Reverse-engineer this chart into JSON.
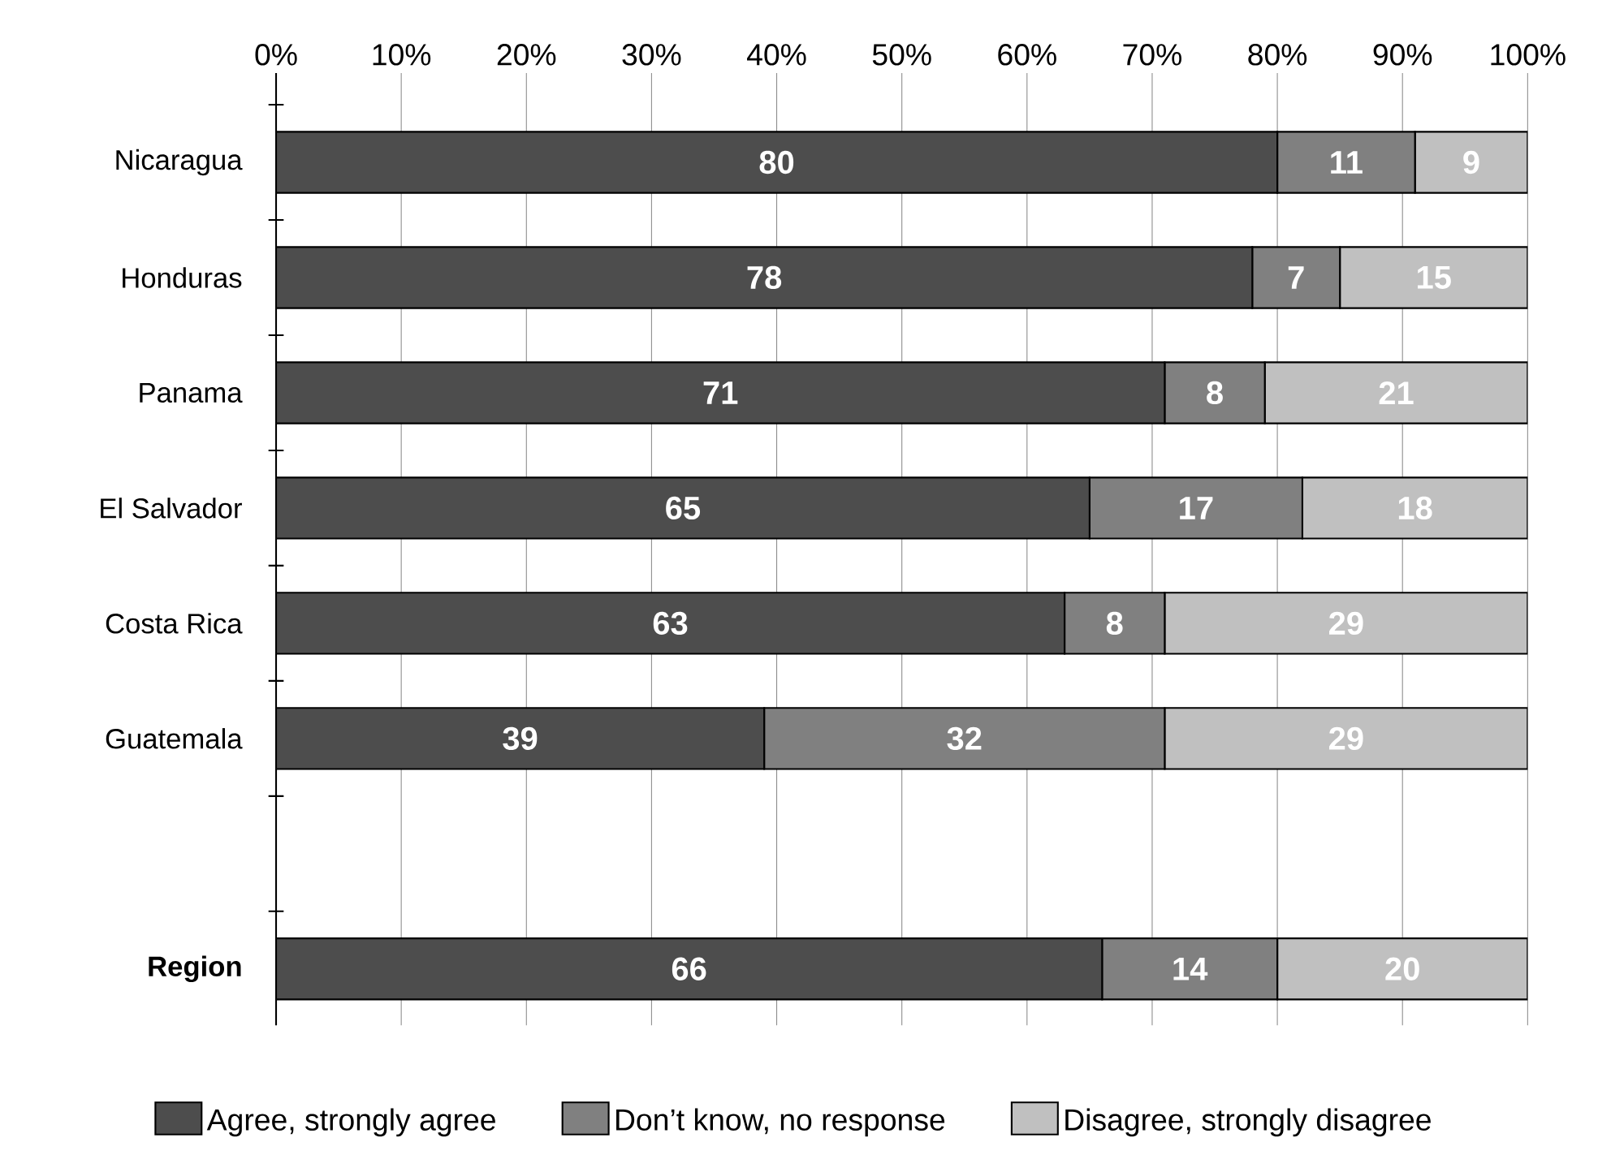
{
  "chart_data": {
    "type": "bar",
    "orientation": "horizontal",
    "stacked": true,
    "categories": [
      "Nicaragua",
      "Honduras",
      "Panama",
      "El Salvador",
      "Costa Rica",
      "Guatemala",
      null,
      "**Region**"
    ],
    "series": [
      {
        "name": "Agree, strongly agree",
        "color": "#4d4d4d",
        "values": [
          80,
          78,
          71,
          65,
          63,
          39,
          null,
          66
        ]
      },
      {
        "name": "Don’t know, no response",
        "color": "#808080",
        "values": [
          11,
          7,
          8,
          17,
          8,
          32,
          null,
          14
        ]
      },
      {
        "name": "Disagree, strongly disagree",
        "color": "#c0c0c0",
        "values": [
          9,
          15,
          21,
          18,
          29,
          29,
          null,
          20
        ]
      }
    ],
    "xlim": [
      0,
      100
    ],
    "xticks": [
      {
        "value": 0,
        "label": "0%"
      },
      {
        "value": 10,
        "label": "10%"
      },
      {
        "value": 20,
        "label": "20%"
      },
      {
        "value": 30,
        "label": "30%"
      },
      {
        "value": 40,
        "label": "40%"
      },
      {
        "value": 50,
        "label": "50%"
      },
      {
        "value": 60,
        "label": "60%"
      },
      {
        "value": 70,
        "label": "70%"
      },
      {
        "value": 80,
        "label": "80%"
      },
      {
        "value": 90,
        "label": "90%"
      },
      {
        "value": 100,
        "label": "100%"
      }
    ],
    "grid": "x",
    "legend": "bottom",
    "data_labels": true
  }
}
